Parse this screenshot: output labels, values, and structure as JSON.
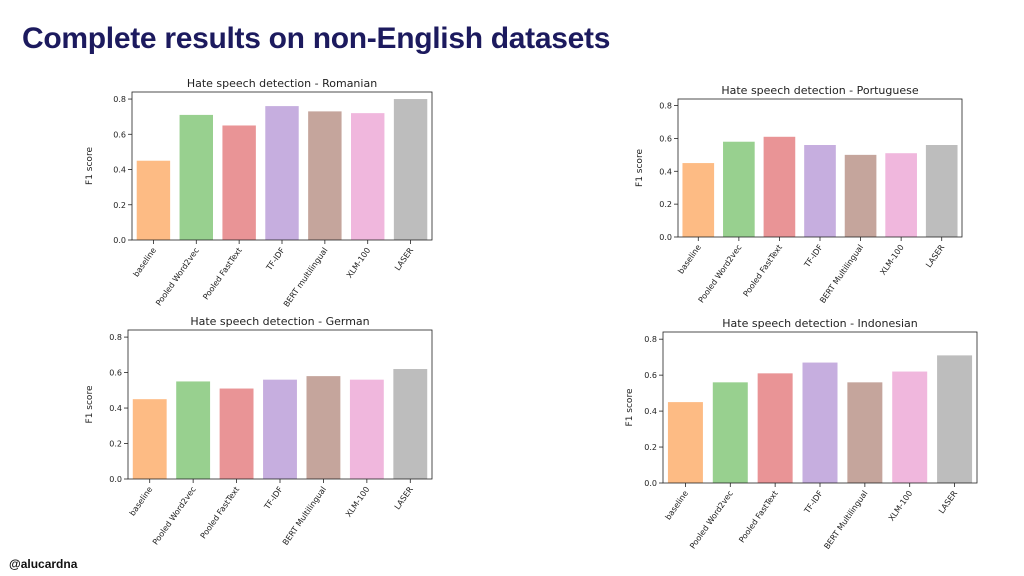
{
  "slide": {
    "title": "Complete results on non-English datasets",
    "handle": "@alucardna"
  },
  "colors": [
    "#fdbb84",
    "#98d08f",
    "#e99496",
    "#c6aedf",
    "#c5a59c",
    "#f0b7dd",
    "#bdbdbd"
  ],
  "chart_data": [
    {
      "type": "bar",
      "title": "Hate speech detection - Romanian",
      "ylabel": "F1 score",
      "categories": [
        "baseline",
        "Pooled Word2vec",
        "Pooled FastText",
        "TF-IDF",
        "BERT multilingual",
        "XLM-100",
        "LASER"
      ],
      "values": [
        0.45,
        0.71,
        0.65,
        0.76,
        0.73,
        0.72,
        0.8
      ],
      "yticks": [
        "0.0",
        "0.2",
        "0.4",
        "0.6",
        "0.8"
      ],
      "ylim": [
        0,
        0.84
      ],
      "grid": false
    },
    {
      "type": "bar",
      "title": "Hate speech detection - Portuguese",
      "ylabel": "F1 score",
      "categories": [
        "baseline",
        "Pooled Word2vec",
        "Pooled FastText",
        "TF-IDF",
        "BERT Multilingual",
        "XLM-100",
        "LASER"
      ],
      "values": [
        0.45,
        0.58,
        0.61,
        0.56,
        0.5,
        0.51,
        0.56
      ],
      "yticks": [
        "0.0",
        "0.2",
        "0.4",
        "0.6",
        "0.8"
      ],
      "ylim": [
        0,
        0.84
      ],
      "grid": false
    },
    {
      "type": "bar",
      "title": "Hate speech detection - German",
      "ylabel": "F1 score",
      "categories": [
        "baseline",
        "Pooled Word2vec",
        "Pooled FastText",
        "TF-IDF",
        "BERT Multilingual",
        "XLM-100",
        "LASER"
      ],
      "values": [
        0.45,
        0.55,
        0.51,
        0.56,
        0.58,
        0.56,
        0.62
      ],
      "yticks": [
        "0.0",
        "0.2",
        "0.4",
        "0.6",
        "0.8"
      ],
      "ylim": [
        0,
        0.84
      ],
      "grid": false
    },
    {
      "type": "bar",
      "title": "Hate speech detection - Indonesian",
      "ylabel": "F1 score",
      "categories": [
        "baseline",
        "Pooled Word2vec",
        "Pooled FastText",
        "TF-IDF",
        "BERT Multilingual",
        "XLM-100",
        "LASER"
      ],
      "values": [
        0.45,
        0.56,
        0.61,
        0.67,
        0.56,
        0.62,
        0.71
      ],
      "yticks": [
        "0.0",
        "0.2",
        "0.4",
        "0.6",
        "0.8"
      ],
      "ylim": [
        0,
        0.84
      ],
      "grid": false
    }
  ]
}
